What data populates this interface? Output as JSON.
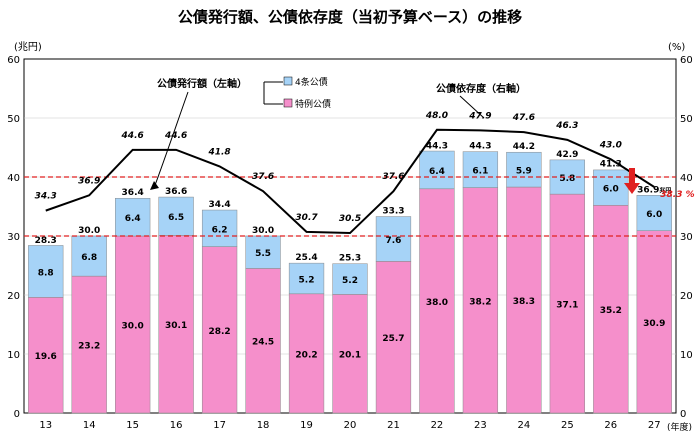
{
  "chart_data": {
    "type": "bar",
    "title": "公債発行額、公債依存度（当初予算ベース）の推移",
    "left_unit": "(兆円)",
    "right_unit": "(%)",
    "x_unit": "(年度)",
    "ylim": [
      0,
      60
    ],
    "y2lim": [
      0,
      60
    ],
    "y_ticks": [
      "0",
      "10",
      "20",
      "30",
      "40",
      "50",
      "60"
    ],
    "y2_ticks": [
      "0",
      "10",
      "20",
      "30",
      "40",
      "50",
      "60"
    ],
    "categories": [
      "13",
      "14",
      "15",
      "16",
      "17",
      "18",
      "19",
      "20",
      "21",
      "22",
      "23",
      "24",
      "25",
      "26",
      "27"
    ],
    "series": [
      {
        "name": "特例公債",
        "color": "#f58fcb",
        "values": [
          19.6,
          23.2,
          30.0,
          30.1,
          28.2,
          24.5,
          20.2,
          20.1,
          25.7,
          38.0,
          38.2,
          38.3,
          37.1,
          35.2,
          30.9
        ],
        "labels": [
          "19.6",
          "23.2",
          "30.0",
          "30.1",
          "28.2",
          "24.5",
          "20.2",
          "20.1",
          "25.7",
          "38.0",
          "38.2",
          "38.3",
          "37.1",
          "35.2",
          "30.9"
        ]
      },
      {
        "name": "4条公債",
        "color": "#a6d3f7",
        "values": [
          8.8,
          6.8,
          6.4,
          6.5,
          6.2,
          5.5,
          5.2,
          5.2,
          7.6,
          6.4,
          6.1,
          5.9,
          5.8,
          6.0,
          6.0
        ],
        "labels": [
          "8.8",
          "6.8",
          "6.4",
          "6.5",
          "6.2",
          "5.5",
          "5.2",
          "5.2",
          "7.6",
          "6.4",
          "6.1",
          "5.9",
          "5.8",
          "6.0",
          "6.0"
        ]
      }
    ],
    "totals": [
      28.3,
      30.0,
      36.4,
      36.6,
      34.4,
      30.0,
      25.4,
      25.3,
      33.3,
      44.3,
      44.3,
      44.2,
      42.9,
      41.3,
      36.9
    ],
    "total_labels": [
      "28.3",
      "30.0",
      "36.4",
      "36.6",
      "34.4",
      "30.0",
      "25.4",
      "25.3",
      "33.3",
      "44.3",
      "44.3",
      "44.2",
      "42.9",
      "41.3",
      "36.9"
    ],
    "total_last_unit": "兆円",
    "dependency_line": {
      "values": [
        34.3,
        36.9,
        44.6,
        44.6,
        41.8,
        37.6,
        30.7,
        30.5,
        37.6,
        48.0,
        47.9,
        47.6,
        46.3,
        43.0,
        38.3
      ],
      "labels": [
        "34.3",
        "36.9",
        "44.6",
        "44.6",
        "41.8",
        "37.6",
        "30.7",
        "30.5",
        "37.6",
        "48.0",
        "47.9",
        "47.6",
        "46.3",
        "43.0",
        "38.3 %"
      ],
      "color": "#000000"
    },
    "reference_lines": [
      {
        "value": 40,
        "color": "#e02020",
        "style": "dashed"
      },
      {
        "value": 30,
        "color": "#e02020",
        "style": "dashed"
      }
    ],
    "annotations": {
      "left_axis_label": "公債発行額（左軸）",
      "right_axis_label": "公債依存度（右軸）"
    },
    "legend_position": "top-center",
    "grid": "horizontal"
  }
}
